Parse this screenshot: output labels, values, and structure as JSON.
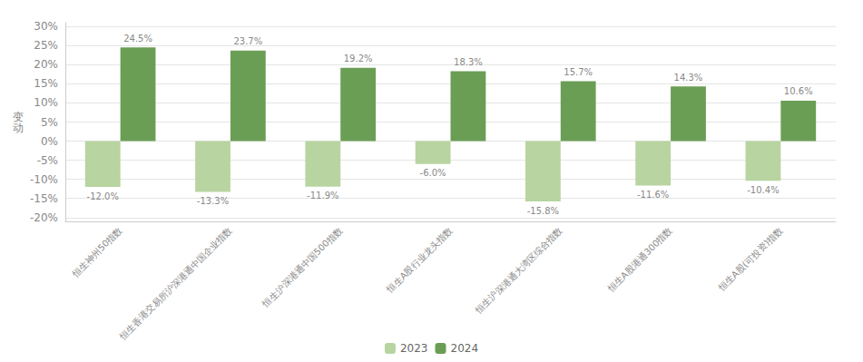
{
  "chart_data": {
    "type": "bar",
    "categories": [
      "恒生神州50指数",
      "恒生香港交易所沪深港通中国企业指数",
      "恒生沪深港通中国500指数",
      "恒生A股行业龙头指数",
      "恒生沪深港通大湾区综合指数",
      "恒生A股港通300指数",
      "恒生A股(可投资)指数"
    ],
    "series": [
      {
        "name": "2023",
        "color": "#b8d4a0",
        "values": [
          -12.0,
          -13.3,
          -11.9,
          -6.0,
          -15.8,
          -11.6,
          -10.4
        ],
        "value_labels": [
          "-12.0%",
          "-13.3%",
          "-11.9%",
          "-6.0%",
          "-15.8%",
          "-11.6%",
          "-10.4%"
        ]
      },
      {
        "name": "2024",
        "color": "#6b9e55",
        "values": [
          24.5,
          23.7,
          19.2,
          18.3,
          15.7,
          14.3,
          10.6
        ],
        "value_labels": [
          "24.5%",
          "23.7%",
          "19.2%",
          "18.3%",
          "15.7%",
          "14.3%",
          "10.6%"
        ]
      }
    ],
    "ylabel": "变\n动",
    "ylim": [
      -21,
      31
    ],
    "yticks": [
      {
        "value": -20,
        "label": "-20%"
      },
      {
        "value": -15,
        "label": "-15%"
      },
      {
        "value": -10,
        "label": "-10%"
      },
      {
        "value": -5,
        "label": "-5%"
      },
      {
        "value": 0,
        "label": "0%"
      },
      {
        "value": 5,
        "label": "5%"
      },
      {
        "value": 10,
        "label": "10%"
      },
      {
        "value": 15,
        "label": "15%"
      },
      {
        "value": 20,
        "label": "20%"
      },
      {
        "value": 25,
        "label": "25%"
      },
      {
        "value": 30,
        "label": "30%"
      }
    ],
    "grid": true,
    "legend": "bottom",
    "data_labels": true
  }
}
